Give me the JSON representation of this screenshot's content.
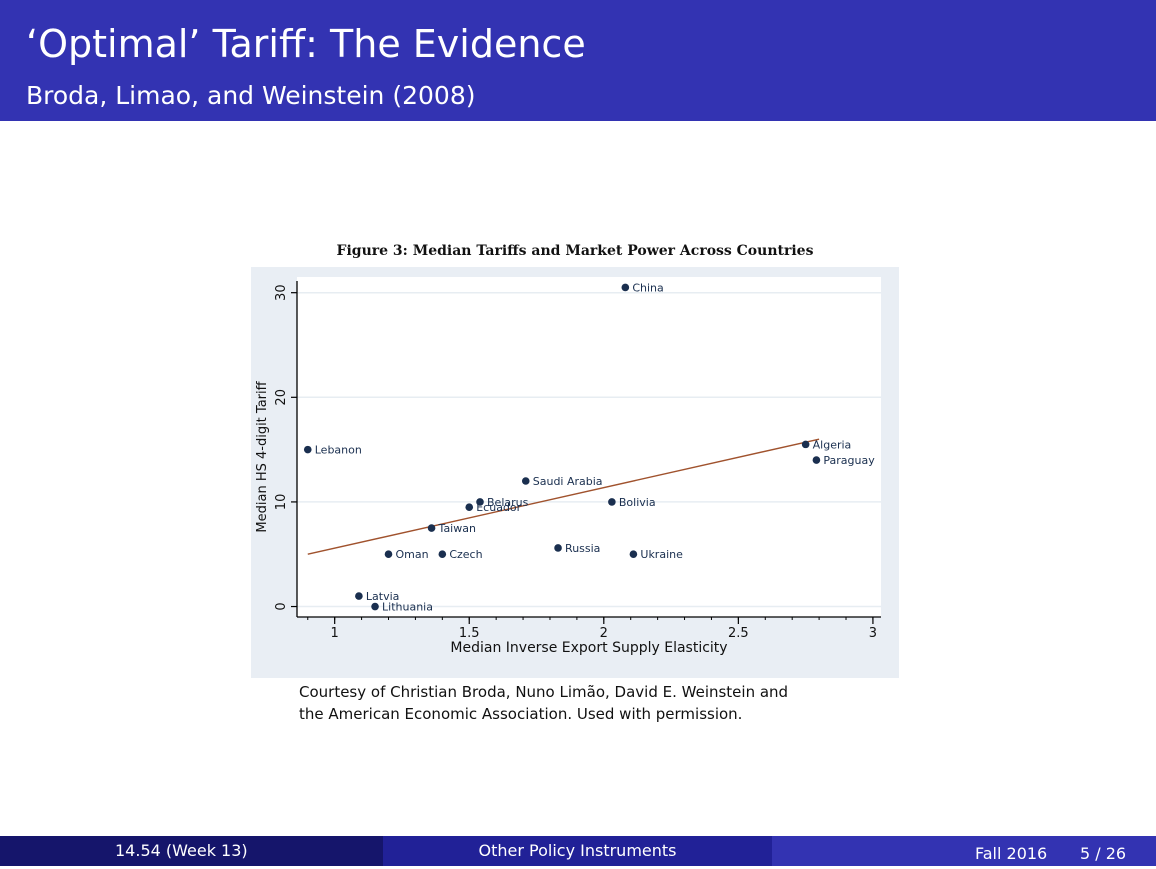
{
  "header": {
    "title": "‘Optimal’ Tariff: The Evidence",
    "subtitle": "Broda, Limao, and Weinstein (2008)"
  },
  "figure_title": "Figure 3: Median Tariffs and Market Power Across Countries",
  "caption": {
    "line1": "Courtesy of Christian Broda, Nuno Limão, David E. Weinstein and",
    "line2": "the American Economic Association. Used with permission."
  },
  "footer": {
    "course": "14.54  (Week 13)",
    "topic": "Other Policy Instruments",
    "term": "Fall 2016",
    "page": "5 / 26"
  },
  "chart_data": {
    "type": "scatter",
    "xlabel": "Median Inverse Export Supply Elasticity",
    "ylabel": "Median HS 4-digit Tariff",
    "xlim": [
      0.86,
      3.03
    ],
    "ylim": [
      -1,
      31.5
    ],
    "xticks": [
      1,
      1.5,
      2,
      2.5,
      3
    ],
    "xtick_labels": [
      "1",
      "1.5",
      "2",
      "2.5",
      "3"
    ],
    "yticks": [
      0,
      10,
      20,
      30
    ],
    "ytick_labels": [
      "0",
      "10",
      "20",
      "30"
    ],
    "grid": true,
    "points": [
      {
        "label": "China",
        "x": 2.08,
        "y": 30.5
      },
      {
        "label": "Lebanon",
        "x": 0.9,
        "y": 15.0
      },
      {
        "label": "Algeria",
        "x": 2.75,
        "y": 15.5
      },
      {
        "label": "Paraguay",
        "x": 2.79,
        "y": 14.0
      },
      {
        "label": "Saudi Arabia",
        "x": 1.71,
        "y": 12.0
      },
      {
        "label": "Belarus",
        "x": 1.54,
        "y": 10.0
      },
      {
        "label": "Ecuador",
        "x": 1.5,
        "y": 9.5
      },
      {
        "label": "Bolivia",
        "x": 2.03,
        "y": 10.0
      },
      {
        "label": "Taiwan",
        "x": 1.36,
        "y": 7.5
      },
      {
        "label": "Russia",
        "x": 1.83,
        "y": 5.6
      },
      {
        "label": "Ukraine",
        "x": 2.11,
        "y": 5.0
      },
      {
        "label": "Oman",
        "x": 1.2,
        "y": 5.0
      },
      {
        "label": "Czech",
        "x": 1.4,
        "y": 5.0
      },
      {
        "label": "Latvia",
        "x": 1.09,
        "y": 1.0
      },
      {
        "label": "Lithuania",
        "x": 1.15,
        "y": 0.0
      }
    ],
    "fit_line": {
      "x": [
        0.9,
        2.8
      ],
      "y": [
        5.0,
        16.0
      ]
    },
    "colors": {
      "marker": "#1a2f4f",
      "fit_line": "#a0522d",
      "plot_bg": "#ffffff",
      "outer_bg": "#e9eef4"
    }
  }
}
